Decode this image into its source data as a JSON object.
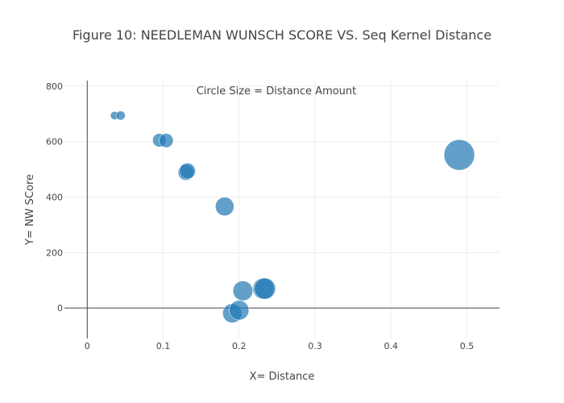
{
  "chart_data": {
    "type": "scatter",
    "title": "Figure 10: NEEDLEMAN WUNSCH SCORE VS. Seq Kernel Distance",
    "xlabel": "X= Distance",
    "ylabel": "Y= NW SCore",
    "annotation": "Circle Size = Distance Amount",
    "xlim": [
      -0.03,
      0.543
    ],
    "ylim": [
      -110,
      820
    ],
    "x_ticks": [
      0,
      0.1,
      0.2,
      0.3,
      0.4,
      0.5
    ],
    "x_tick_labels": [
      "0",
      "0.1",
      "0.2",
      "0.3",
      "0.4",
      "0.5"
    ],
    "y_ticks": [
      0,
      200,
      400,
      600,
      800
    ],
    "y_tick_labels": [
      "0",
      "200",
      "400",
      "600",
      "800"
    ],
    "grid": true,
    "marker_color": "#1f77b4",
    "points": [
      {
        "x": 0.036,
        "y": 694,
        "size": 0.036
      },
      {
        "x": 0.044,
        "y": 694,
        "size": 0.044
      },
      {
        "x": 0.095,
        "y": 605,
        "size": 0.095
      },
      {
        "x": 0.104,
        "y": 604,
        "size": 0.104
      },
      {
        "x": 0.13,
        "y": 489,
        "size": 0.13
      },
      {
        "x": 0.132,
        "y": 494,
        "size": 0.132
      },
      {
        "x": 0.181,
        "y": 366,
        "size": 0.181
      },
      {
        "x": 0.191,
        "y": -19,
        "size": 0.191
      },
      {
        "x": 0.2,
        "y": -8,
        "size": 0.2
      },
      {
        "x": 0.205,
        "y": 62,
        "size": 0.205
      },
      {
        "x": 0.232,
        "y": 70,
        "size": 0.232
      },
      {
        "x": 0.234,
        "y": 70,
        "size": 0.234
      },
      {
        "x": 0.49,
        "y": 552,
        "size": 0.49
      }
    ]
  }
}
